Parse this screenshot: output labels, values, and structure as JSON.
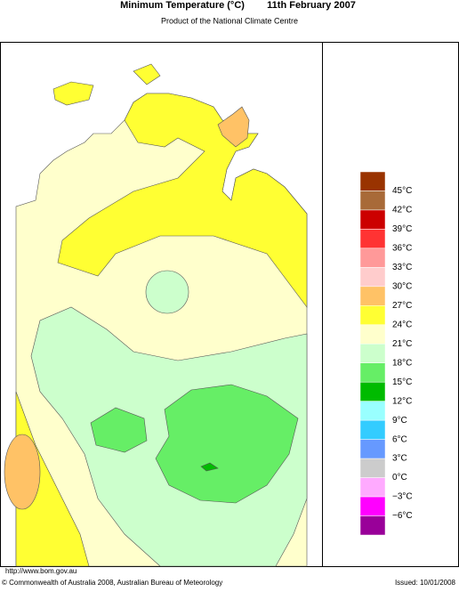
{
  "header": {
    "title": "Minimum Temperature (°C)",
    "date": "11th February 2007",
    "subtitle": "Product of the National Climate Centre"
  },
  "legend": {
    "colors": [
      "#993300",
      "#a86a38",
      "#cc0000",
      "#ff3333",
      "#ff9999",
      "#ffcccc",
      "#ffc266",
      "#ffff33",
      "#ffffcc",
      "#ccffcc",
      "#66ee66",
      "#00bb00",
      "#99ffff",
      "#33ccff",
      "#6699ff",
      "#cccccc",
      "#ffaaff",
      "#ff00ff",
      "#990099"
    ],
    "labels": [
      "45°C",
      "42°C",
      "39°C",
      "36°C",
      "33°C",
      "30°C",
      "27°C",
      "24°C",
      "21°C",
      "18°C",
      "15°C",
      "12°C",
      "9°C",
      "6°C",
      "3°C",
      "0°C",
      "−3°C",
      "−6°C"
    ]
  },
  "footer": {
    "url": "http://www.bom.gov.au",
    "copyright": "© Commonwealth of Australia 2008, Australian Bureau of Meteorology",
    "issued": "Issued: 10/01/2008"
  }
}
